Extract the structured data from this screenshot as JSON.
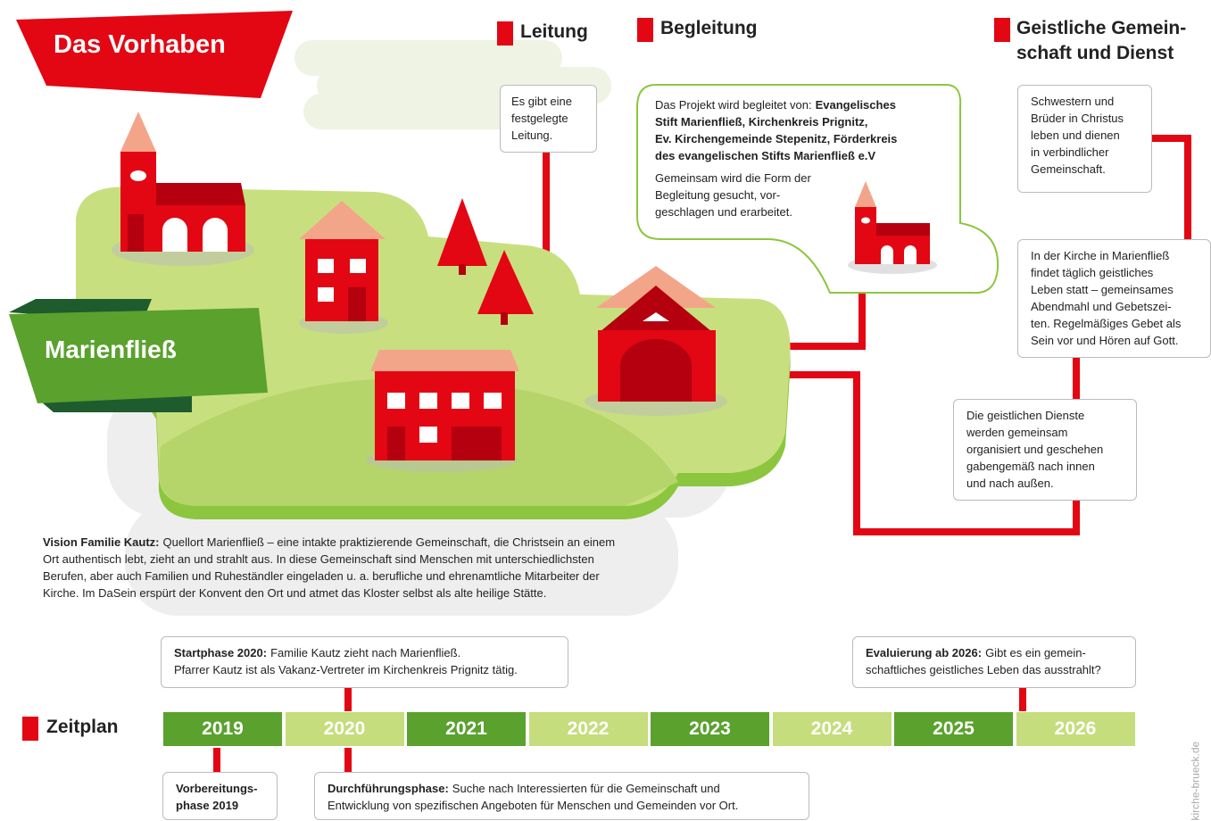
{
  "title": "Das Vorhaben",
  "place": "Marienfließ",
  "sections": {
    "leitung": {
      "heading": "Leitung",
      "lines": [
        "Es gibt eine",
        "festgelegte",
        "Leitung."
      ]
    },
    "begleitung": {
      "heading": "Begleitung",
      "intro": "Das Projekt wird begleitet von:",
      "bold_lines": [
        "Evangelisches",
        "Stift Marienfließ, Kirchenkreis Prignitz,",
        "Ev. Kirchengemeinde Stepenitz, Förderkreis",
        "des evangelischen Stifts Marienfließ e.V"
      ],
      "lines": [
        "Gemeinsam wird die Form der",
        "Begleitung gesucht, vor-",
        "geschlagen und erarbeitet."
      ]
    },
    "geistlich": {
      "heading_lines": [
        "Geistliche Gemein-",
        "schaft und Dienst"
      ],
      "boxes": [
        {
          "lines": [
            "Schwestern und",
            "Brüder in Christus",
            "leben und dienen",
            "in verbindlicher",
            "Gemeinschaft."
          ]
        },
        {
          "lines": [
            "In der Kirche in Marienfließ",
            "findet täglich geistliches",
            "Leben statt – gemeinsames",
            "Abendmahl und Gebetszei-",
            "ten. Regelmäßiges Gebet als",
            "Sein vor und Hören auf Gott."
          ]
        },
        {
          "lines": [
            "Die geistlichen Dienste",
            "werden gemeinsam",
            "organisiert und geschehen",
            "gabengemäß nach innen",
            "und nach außen."
          ]
        }
      ]
    }
  },
  "vision": {
    "lead": "Vision Familie Kautz:",
    "lines": [
      "Quellort Marienfließ – eine intakte praktizierende Gemeinschaft, die Christsein an einem",
      "Ort authentisch lebt, zieht an und strahlt aus. In diese Gemeinschaft sind Menschen mit unterschiedlichsten",
      "Berufen, aber auch Familien und Ruheständler eingeladen u. a. berufliche und ehrenamtliche Mitarbeiter der",
      "Kirche.  Im DaSein erspürt der Konvent den Ort und atmet das Kloster selbst als alte heilige Stätte."
    ]
  },
  "timeline": {
    "heading": "Zeitplan",
    "years": [
      "2019",
      "2020",
      "2021",
      "2022",
      "2023",
      "2024",
      "2025",
      "2026"
    ],
    "notes": [
      {
        "lead": "Startphase 2020:",
        "lines": [
          "Familie Kautz zieht nach Marienfließ.",
          "Pfarrer Kautz ist als Vakanz-Vertreter im Kirchenkreis Prignitz tätig."
        ]
      },
      {
        "lead": "Evaluierung ab 2026:",
        "lines": [
          "Gibt es ein gemein-",
          "schaftliches geistliches Leben das ausstrahlt?"
        ]
      },
      {
        "lead_lines": [
          "Vorbereitungs-",
          "phase 2019"
        ]
      },
      {
        "lead": "Durchführungsphase:",
        "lines": [
          "Suche nach Interessierten für die Gemeinschaft und",
          "Entwicklung von spezifischen Angeboten für Menschen und Gemeinden vor Ort."
        ]
      }
    ]
  },
  "credit": "kirche-brueck.de"
}
